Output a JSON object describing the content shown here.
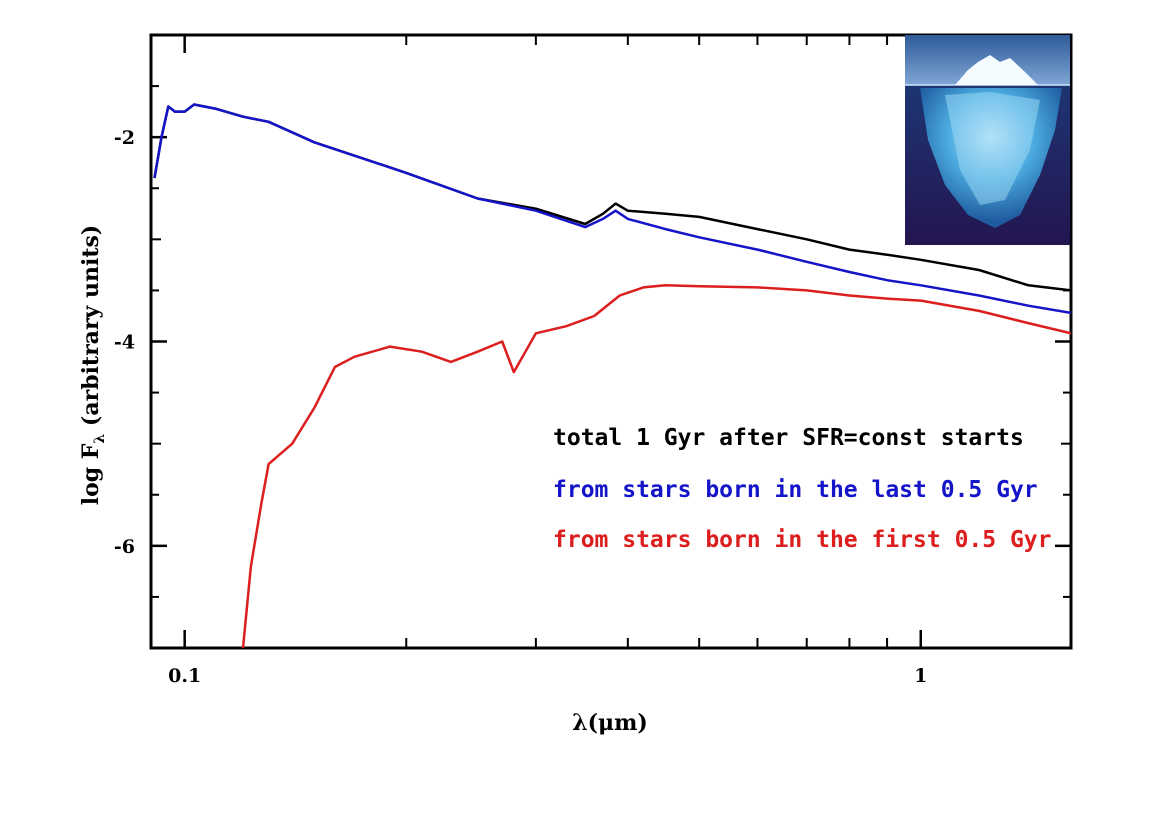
{
  "chart_data": {
    "type": "line",
    "xlabel": "λ(μm)",
    "ylabel": "log F",
    "ylabel_sub": "λ",
    "ylabel_suffix": "(arbitrary units)",
    "x_scale": "log",
    "xlim": [
      0.09,
      1.6
    ],
    "ylim": [
      -7,
      -1
    ],
    "x_ticks": [
      {
        "value": 0.1,
        "label": "0.1"
      },
      {
        "value": 1,
        "label": "1"
      }
    ],
    "y_ticks": [
      {
        "value": -2,
        "label": "-2"
      },
      {
        "value": -4,
        "label": "-4"
      },
      {
        "value": -6,
        "label": "-6"
      }
    ],
    "grid": false,
    "legend_position": "lower-right",
    "series": [
      {
        "name": "total 1 Gyr after SFR=const starts",
        "color": "#000000",
        "x": [
          0.091,
          0.093,
          0.095,
          0.097,
          0.1,
          0.103,
          0.11,
          0.12,
          0.13,
          0.15,
          0.2,
          0.25,
          0.3,
          0.35,
          0.37,
          0.385,
          0.4,
          0.45,
          0.5,
          0.6,
          0.7,
          0.8,
          0.9,
          1.0,
          1.2,
          1.4,
          1.6
        ],
        "y": [
          -2.4,
          -2.0,
          -1.7,
          -1.75,
          -1.75,
          -1.68,
          -1.72,
          -1.8,
          -1.85,
          -2.05,
          -2.35,
          -2.6,
          -2.7,
          -2.85,
          -2.75,
          -2.65,
          -2.72,
          -2.75,
          -2.78,
          -2.9,
          -3.0,
          -3.1,
          -3.15,
          -3.2,
          -3.3,
          -3.45,
          -3.5
        ]
      },
      {
        "name": "from stars born in the last 0.5 Gyr",
        "color": "#1414c8",
        "x": [
          0.091,
          0.093,
          0.095,
          0.097,
          0.1,
          0.103,
          0.11,
          0.12,
          0.13,
          0.15,
          0.2,
          0.25,
          0.3,
          0.35,
          0.37,
          0.385,
          0.4,
          0.45,
          0.5,
          0.6,
          0.7,
          0.8,
          0.9,
          1.0,
          1.2,
          1.4,
          1.6
        ],
        "y": [
          -2.4,
          -2.0,
          -1.7,
          -1.75,
          -1.75,
          -1.68,
          -1.72,
          -1.8,
          -1.85,
          -2.05,
          -2.35,
          -2.6,
          -2.72,
          -2.88,
          -2.8,
          -2.72,
          -2.8,
          -2.9,
          -2.98,
          -3.1,
          -3.22,
          -3.32,
          -3.4,
          -3.45,
          -3.55,
          -3.65,
          -3.72
        ]
      },
      {
        "name": "from stars born in the first 0.5 Gyr",
        "color": "#dc1e1e",
        "x": [
          0.12,
          0.123,
          0.127,
          0.13,
          0.14,
          0.15,
          0.16,
          0.17,
          0.19,
          0.21,
          0.23,
          0.25,
          0.27,
          0.28,
          0.3,
          0.33,
          0.36,
          0.39,
          0.42,
          0.45,
          0.5,
          0.6,
          0.7,
          0.8,
          0.9,
          1.0,
          1.2,
          1.4,
          1.6
        ],
        "y": [
          -7.0,
          -6.2,
          -5.6,
          -5.2,
          -5.0,
          -4.65,
          -4.25,
          -4.15,
          -4.05,
          -4.1,
          -4.2,
          -4.1,
          -4.0,
          -4.3,
          -3.92,
          -3.85,
          -3.75,
          -3.55,
          -3.47,
          -3.45,
          -3.46,
          -3.47,
          -3.5,
          -3.55,
          -3.58,
          -3.6,
          -3.7,
          -3.82,
          -3.92
        ]
      }
    ],
    "legend": [
      {
        "text": "total 1 Gyr after SFR=const starts",
        "color": "#000000"
      },
      {
        "text": "from stars born in the last 0.5 Gyr",
        "color": "#1414c8"
      },
      {
        "text": "from stars born in the first 0.5 Gyr",
        "color": "#dc1e1e"
      }
    ]
  },
  "inset_image": {
    "icon": "iceberg-photo"
  }
}
